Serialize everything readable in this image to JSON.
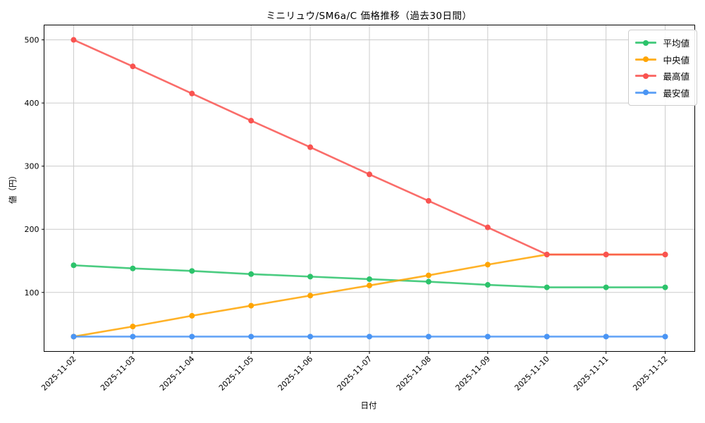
{
  "chart_data": {
    "type": "line",
    "title": "ミニリュウ/SM6a/C 価格推移（過去30日間）",
    "xlabel": "日付",
    "ylabel": "値（円）",
    "categories": [
      "2025-11-02",
      "2025-11-03",
      "2025-11-04",
      "2025-11-05",
      "2025-11-06",
      "2025-11-07",
      "2025-11-08",
      "2025-11-09",
      "2025-11-10",
      "2025-11-11",
      "2025-11-12"
    ],
    "series": [
      {
        "name": "平均値",
        "key": "average",
        "color": "#2cc36b",
        "values": [
          143,
          138,
          134,
          129,
          125,
          121,
          117,
          112,
          108,
          108,
          108
        ]
      },
      {
        "name": "中央値",
        "key": "median",
        "color": "#ffa502",
        "values": [
          30,
          46,
          63,
          79,
          95,
          111,
          127,
          144,
          160,
          160,
          160
        ]
      },
      {
        "name": "最高値",
        "key": "max",
        "color": "#f95350",
        "values": [
          500,
          458,
          415,
          372,
          330,
          287,
          245,
          203,
          160,
          160,
          160
        ]
      },
      {
        "name": "最安値",
        "key": "min",
        "color": "#4a95f4",
        "values": [
          30,
          30,
          30,
          30,
          30,
          30,
          30,
          30,
          30,
          30,
          30
        ]
      }
    ],
    "yticks": [
      100,
      200,
      300,
      400,
      500
    ],
    "ylim": [
      6.5,
      523.5
    ],
    "grid": true,
    "grid_color": "#cccccc",
    "background": "#ffffff",
    "legend_position": "upper right"
  }
}
